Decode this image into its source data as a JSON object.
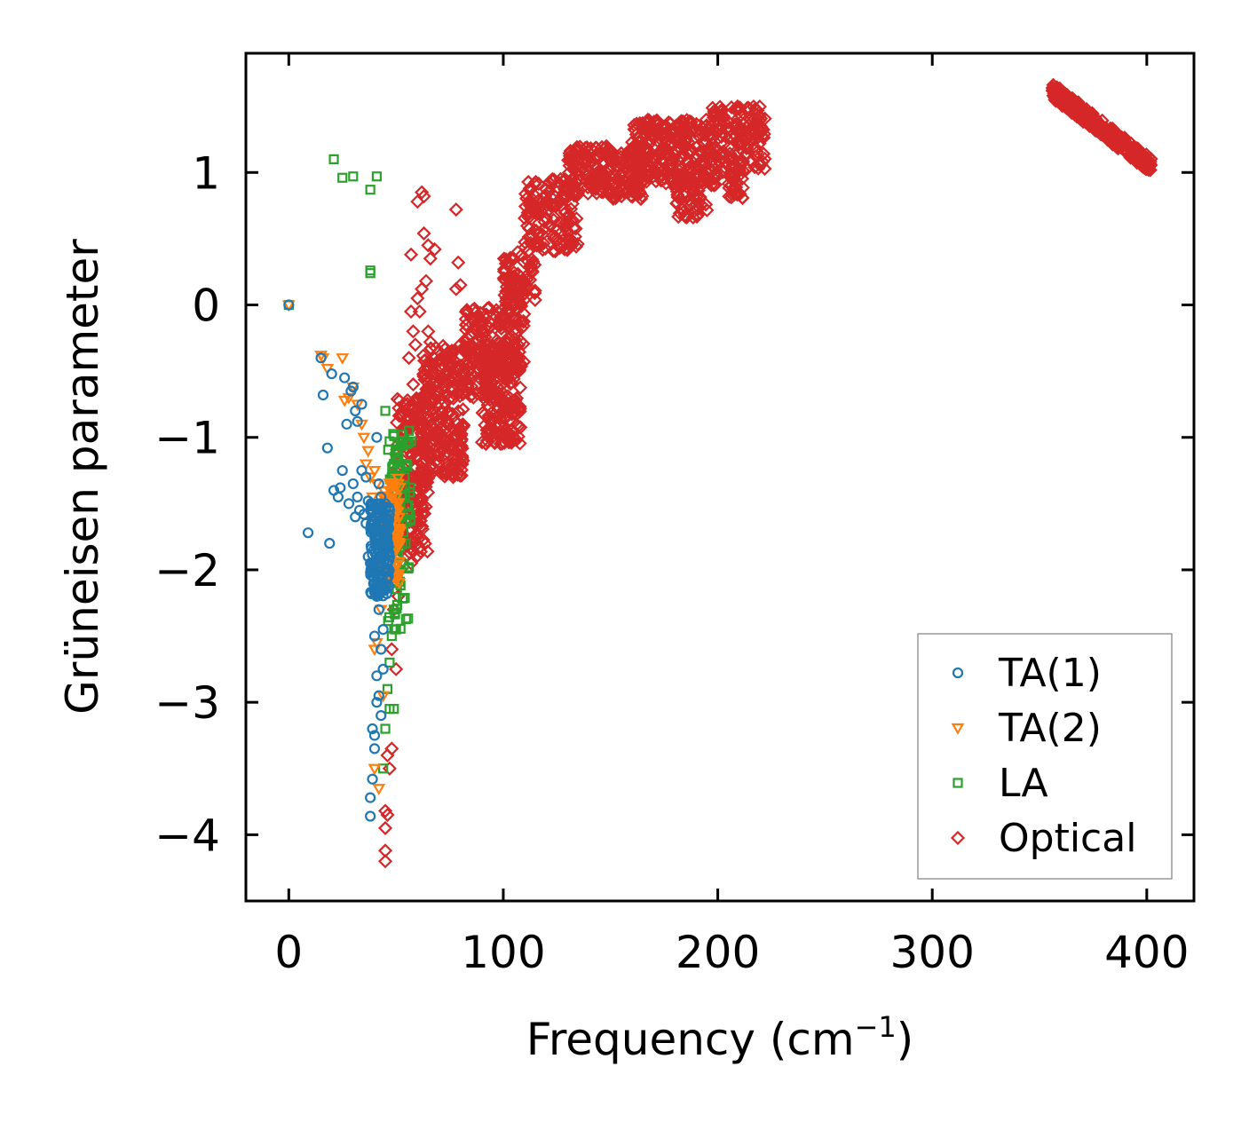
{
  "chart_data": {
    "type": "scatter",
    "xlabel": "Frequency (cm",
    "xlabel_sup": "−1",
    "xlabel_end": ")",
    "ylabel": "Grüneisen parameter",
    "xlim": [
      -20,
      422
    ],
    "ylim": [
      -4.5,
      1.9
    ],
    "xticks": [
      0,
      100,
      200,
      300,
      400
    ],
    "xtick_labels": [
      "0",
      "100",
      "200",
      "300",
      "400"
    ],
    "yticks": [
      1,
      0,
      -1,
      -2,
      -3,
      -4
    ],
    "ytick_labels": [
      "1",
      "0",
      "−1",
      "−2",
      "−3",
      "−4"
    ],
    "legend_position": "lower right",
    "series": [
      {
        "name": "TA(1)",
        "marker": "circle",
        "color": "#1f77b4",
        "points": [
          [
            0,
            0
          ],
          [
            9,
            -1.72
          ],
          [
            15,
            -0.4
          ],
          [
            16,
            -0.68
          ],
          [
            18,
            -1.08
          ],
          [
            19,
            -1.8
          ],
          [
            20,
            -0.52
          ],
          [
            21,
            -1.4
          ],
          [
            23,
            -1.45
          ],
          [
            24,
            -1.38
          ],
          [
            25,
            -1.25
          ],
          [
            26,
            -0.55
          ],
          [
            27,
            -0.9
          ],
          [
            28,
            -1.5
          ],
          [
            29,
            -0.65
          ],
          [
            30,
            -1.35
          ],
          [
            30,
            -0.62
          ],
          [
            31,
            -1.6
          ],
          [
            31,
            -0.8
          ],
          [
            32,
            -1.45
          ],
          [
            32,
            -0.88
          ],
          [
            33,
            -1.55
          ],
          [
            34,
            -1.25
          ],
          [
            34,
            -0.75
          ],
          [
            35,
            -1.58
          ],
          [
            36,
            -1.3
          ],
          [
            36,
            -1.65
          ],
          [
            37,
            -1.48
          ],
          [
            37,
            -1.9
          ],
          [
            38,
            -1.55
          ],
          [
            38,
            -1.95
          ],
          [
            38,
            -3.72
          ],
          [
            38,
            -3.86
          ],
          [
            39,
            -1.62
          ],
          [
            39,
            -2.05
          ],
          [
            39,
            -3.2
          ],
          [
            39,
            -3.58
          ],
          [
            40,
            -1.52
          ],
          [
            40,
            -2.1
          ],
          [
            40,
            -2.5
          ],
          [
            40,
            -3.25
          ],
          [
            40,
            -3.35
          ],
          [
            41,
            -1.0
          ],
          [
            41,
            -1.7
          ],
          [
            41,
            -2.2
          ],
          [
            41,
            -2.8
          ],
          [
            41,
            -3.0
          ],
          [
            42,
            -1.35
          ],
          [
            42,
            -1.85
          ],
          [
            42,
            -2.3
          ],
          [
            42,
            -2.95
          ],
          [
            43,
            -1.45
          ],
          [
            43,
            -1.95
          ],
          [
            43,
            -2.6
          ],
          [
            43,
            -3.1
          ],
          [
            44,
            -1.6
          ],
          [
            44,
            -2.0
          ],
          [
            44,
            -2.45
          ],
          [
            44,
            -2.75
          ],
          [
            45,
            -1.5
          ],
          [
            45,
            -1.8
          ],
          [
            45,
            -2.15
          ],
          [
            46,
            -1.7
          ],
          [
            46,
            -1.95
          ],
          [
            47,
            -1.55
          ],
          [
            47,
            -1.9
          ]
        ],
        "band": {
          "x_range": [
            38,
            47
          ],
          "y_range": [
            -2.2,
            -1.5
          ],
          "count": 160
        }
      },
      {
        "name": "TA(2)",
        "marker": "triangle-down",
        "color": "#ff7f0e",
        "points": [
          [
            0,
            0
          ],
          [
            15,
            -0.38
          ],
          [
            16,
            -0.4
          ],
          [
            18,
            -0.48
          ],
          [
            25,
            -0.4
          ],
          [
            26,
            -0.72
          ],
          [
            28,
            -0.7
          ],
          [
            30,
            -0.62
          ],
          [
            32,
            -0.75
          ],
          [
            34,
            -0.9
          ],
          [
            35,
            -1.0
          ],
          [
            36,
            -1.2
          ],
          [
            37,
            -1.1
          ],
          [
            38,
            -1.3
          ],
          [
            39,
            -1.45
          ],
          [
            40,
            -1.25
          ],
          [
            40,
            -2.6
          ],
          [
            40,
            -3.5
          ],
          [
            41,
            -1.6
          ],
          [
            41,
            -1.35
          ],
          [
            41,
            -2.55
          ],
          [
            42,
            -1.5
          ],
          [
            42,
            -3.65
          ],
          [
            43,
            -1.7
          ],
          [
            43,
            -2.3
          ],
          [
            44,
            -1.45
          ],
          [
            44,
            -2.95
          ],
          [
            45,
            -1.65
          ],
          [
            45,
            -2.0
          ],
          [
            46,
            -1.5
          ],
          [
            46,
            -1.9
          ],
          [
            47,
            -1.4
          ],
          [
            47,
            -2.1
          ],
          [
            48,
            -1.35
          ],
          [
            48,
            -1.8
          ],
          [
            49,
            -1.6
          ],
          [
            50,
            -1.55
          ],
          [
            51,
            -1.5
          ]
        ],
        "band": {
          "x_range": [
            44,
            52
          ],
          "y_range": [
            -2.1,
            -1.3
          ],
          "count": 90
        }
      },
      {
        "name": "LA",
        "marker": "square",
        "color": "#2ca02c",
        "points": [
          [
            0,
            0
          ],
          [
            21,
            1.1
          ],
          [
            25,
            0.96
          ],
          [
            30,
            0.97
          ],
          [
            38,
            0.87
          ],
          [
            38,
            0.26
          ],
          [
            38,
            0.24
          ],
          [
            41,
            0.97
          ],
          [
            45,
            -0.8
          ],
          [
            47,
            -1.03
          ],
          [
            48,
            -1.3
          ],
          [
            49,
            -1.2
          ],
          [
            50,
            -1.4
          ],
          [
            50,
            -2.45
          ],
          [
            51,
            -1.1
          ],
          [
            51,
            -2.0
          ],
          [
            52,
            -1.25
          ],
          [
            52,
            -1.6
          ],
          [
            53,
            -0.98
          ],
          [
            53,
            -1.45
          ],
          [
            54,
            -1.3
          ],
          [
            55,
            -1.05
          ],
          [
            55,
            -1.2
          ],
          [
            56,
            -0.95
          ],
          [
            56,
            -1.98
          ],
          [
            57,
            -1.03
          ],
          [
            44,
            -3.5
          ],
          [
            45,
            -3.2
          ],
          [
            46,
            -2.9
          ],
          [
            47,
            -2.7
          ],
          [
            48,
            -2.5
          ],
          [
            49,
            -2.3
          ],
          [
            50,
            -2.1
          ],
          [
            51,
            -1.9
          ],
          [
            49,
            -3.05
          ],
          [
            47,
            -3.05
          ]
        ],
        "band": {
          "x_range": [
            46,
            57
          ],
          "y_range": [
            -2.5,
            -0.95
          ],
          "count": 80
        }
      },
      {
        "name": "Optical",
        "marker": "diamond",
        "color": "#d62728",
        "points": [
          [
            45,
            -3.82
          ],
          [
            45,
            -3.95
          ],
          [
            45,
            -4.12
          ],
          [
            45,
            -4.2
          ],
          [
            46,
            -3.85
          ],
          [
            46,
            -3.4
          ],
          [
            47,
            -3.5
          ],
          [
            48,
            -2.6
          ],
          [
            48,
            -3.35
          ],
          [
            49,
            -2.3
          ],
          [
            50,
            -2.75
          ],
          [
            51,
            -2.2
          ],
          [
            52,
            -2.0
          ],
          [
            54,
            -1.8
          ],
          [
            56,
            -1.7
          ],
          [
            57,
            -1.95
          ],
          [
            58,
            -1.75
          ],
          [
            59,
            -1.65
          ],
          [
            53,
            -0.8
          ],
          [
            56,
            -0.4
          ],
          [
            58,
            -0.6
          ],
          [
            57,
            0.38
          ],
          [
            57,
            -0.05
          ],
          [
            58,
            -0.2
          ],
          [
            59,
            -0.3
          ],
          [
            60,
            0.05
          ],
          [
            60,
            0.78
          ],
          [
            61,
            -0.05
          ],
          [
            62,
            0.85
          ],
          [
            62,
            0.12
          ],
          [
            63,
            0.82
          ],
          [
            63,
            0.54
          ],
          [
            64,
            0.18
          ],
          [
            65,
            0.45
          ],
          [
            65,
            -0.2
          ],
          [
            66,
            -0.28
          ],
          [
            66,
            0.35
          ],
          [
            67,
            -0.5
          ],
          [
            68,
            0.42
          ],
          [
            70,
            -0.35
          ],
          [
            72,
            -0.4
          ],
          [
            78,
            0.12
          ],
          [
            78,
            0.72
          ],
          [
            79,
            0.32
          ],
          [
            80,
            0.15
          ]
        ],
        "dense": [
          {
            "x_range": [
              50,
              65
            ],
            "y_range": [
              -1.9,
              -0.7
            ],
            "count": 220
          },
          {
            "x_range": [
              62,
              82
            ],
            "y_range": [
              -1.3,
              -0.3
            ],
            "count": 260
          },
          {
            "x_range": [
              82,
              100
            ],
            "y_range": [
              -0.7,
              0.0
            ],
            "count": 160
          },
          {
            "x_range": [
              90,
              108
            ],
            "y_range": [
              -1.05,
              -0.3
            ],
            "count": 200
          },
          {
            "x_range": [
              100,
              110
            ],
            "y_range": [
              -0.5,
              0.2
            ],
            "count": 80
          },
          {
            "x_range": [
              100,
              115
            ],
            "y_range": [
              0.0,
              0.4
            ],
            "count": 60
          },
          {
            "x_range": [
              110,
              135
            ],
            "y_range": [
              0.4,
              0.95
            ],
            "count": 160
          },
          {
            "x_range": [
              130,
              165
            ],
            "y_range": [
              0.8,
              1.2
            ],
            "count": 220
          },
          {
            "x_range": [
              160,
              200
            ],
            "y_range": [
              0.9,
              1.4
            ],
            "count": 260
          },
          {
            "x_range": [
              180,
              195
            ],
            "y_range": [
              0.65,
              1.0
            ],
            "count": 60
          },
          {
            "x_range": [
              195,
              222
            ],
            "y_range": [
              1.0,
              1.5
            ],
            "count": 160
          },
          {
            "x_range": [
              205,
              212
            ],
            "y_range": [
              0.8,
              1.0
            ],
            "count": 30
          },
          {
            "x_range": [
              356,
              402
            ],
            "y_range": [
              1.05,
              1.62
            ],
            "count": 320,
            "diagonal": true
          }
        ]
      }
    ]
  }
}
